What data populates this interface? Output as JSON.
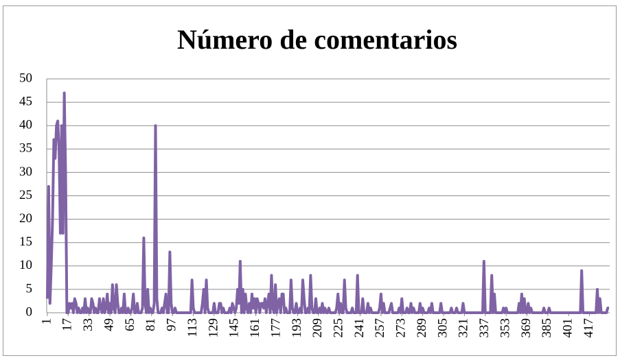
{
  "chart_data": {
    "type": "line",
    "title": "Número de comentarios",
    "color": "#7f63a5",
    "grid": true,
    "ylim": [
      0,
      50
    ],
    "yticks": [
      0,
      5,
      10,
      15,
      20,
      25,
      30,
      35,
      40,
      45,
      50
    ],
    "categories": [
      1,
      null,
      null,
      null,
      null,
      null,
      null,
      null,
      null,
      null,
      null,
      null,
      null,
      null,
      null,
      null,
      17,
      null,
      null,
      null,
      null,
      null,
      null,
      null,
      null,
      null,
      null,
      null,
      null,
      null,
      null,
      null,
      33,
      null,
      null,
      null,
      null,
      null,
      null,
      null,
      null,
      null,
      null,
      null,
      null,
      null,
      null,
      null,
      49,
      null,
      null,
      null,
      null,
      null,
      null,
      null,
      null,
      null,
      null,
      null,
      null,
      null,
      null,
      null,
      65,
      null,
      null,
      null,
      null,
      null,
      null,
      null,
      null,
      null,
      null,
      null,
      null,
      null,
      null,
      null,
      81,
      null,
      null,
      null,
      null,
      null,
      null,
      null,
      null,
      null,
      null,
      null,
      null,
      null,
      null,
      null,
      97,
      null,
      null,
      null,
      null,
      null,
      null,
      null,
      null,
      null,
      null,
      null,
      null,
      null,
      null,
      null,
      113,
      null,
      null,
      null,
      null,
      null,
      null,
      null,
      null,
      null,
      null,
      null,
      null,
      null,
      null,
      null,
      129,
      null,
      null,
      null,
      null,
      null,
      null,
      null,
      null,
      null,
      null,
      null,
      null,
      null,
      null,
      null,
      145,
      null,
      null,
      null,
      null,
      null,
      null,
      null,
      null,
      null,
      null,
      null,
      null,
      null,
      null,
      null,
      161,
      null,
      null,
      null,
      null,
      null,
      null,
      null,
      null,
      null,
      null,
      null,
      null,
      null,
      null,
      null,
      177,
      null,
      null,
      null,
      null,
      null,
      null,
      null,
      null,
      null,
      null,
      null,
      null,
      null,
      null,
      null,
      193,
      null,
      null,
      null,
      null,
      null,
      null,
      null,
      null,
      null,
      null,
      null,
      null,
      null,
      null,
      null,
      209,
      null,
      null,
      null,
      null,
      null,
      null,
      null,
      null,
      null,
      null,
      null,
      null,
      null,
      null,
      null,
      225,
      null,
      null,
      null,
      null,
      null,
      null,
      null,
      null,
      null,
      null,
      null,
      null,
      null,
      null,
      null,
      241,
      null,
      null,
      null,
      null,
      null,
      null,
      null,
      null,
      null,
      null,
      null,
      null,
      null,
      null,
      null,
      257,
      null,
      null,
      null,
      null,
      null,
      null,
      null,
      null,
      null,
      null,
      null,
      null,
      null,
      null,
      null,
      273,
      null,
      null,
      null,
      null,
      null,
      null,
      null,
      null,
      null,
      null,
      null,
      null,
      null,
      null,
      null,
      289,
      null,
      null,
      null,
      null,
      null,
      null,
      null,
      null,
      null,
      null,
      null,
      null,
      null,
      null,
      null,
      305,
      null,
      null,
      null,
      null,
      null,
      null,
      null,
      null,
      null,
      null,
      null,
      null,
      null,
      null,
      null,
      321,
      null,
      null,
      null,
      null,
      null,
      null,
      null,
      null,
      null,
      null,
      null,
      null,
      null,
      null,
      null,
      337,
      null,
      null,
      null,
      null,
      null,
      null,
      null,
      null,
      null,
      null,
      null,
      null,
      null,
      null,
      null,
      353,
      null,
      null,
      null,
      null,
      null,
      null,
      null,
      null,
      null,
      null,
      null,
      null,
      null,
      null,
      null,
      369,
      null,
      null,
      null,
      null,
      null,
      null,
      null,
      null,
      null,
      null,
      null,
      null,
      null,
      null,
      null,
      385,
      null,
      null,
      null,
      null,
      null,
      null,
      null,
      null,
      null,
      null,
      null,
      null,
      null,
      null,
      null,
      401,
      null,
      null,
      null,
      null,
      null,
      null,
      null,
      null,
      null,
      null,
      null,
      null,
      null,
      null,
      null,
      417,
      null,
      null,
      null,
      null,
      null,
      null,
      null,
      null,
      null,
      null,
      null,
      null,
      null,
      null,
      null
    ],
    "values": [
      3,
      27,
      2,
      10,
      20,
      37,
      33,
      40,
      41,
      35,
      17,
      40,
      17,
      47,
      30,
      0,
      0,
      2,
      1,
      2,
      0,
      3,
      2,
      0,
      1,
      0,
      0,
      1,
      0,
      3,
      0,
      1,
      0,
      0,
      3,
      2,
      0,
      1,
      0,
      0,
      3,
      1,
      0,
      3,
      0,
      1,
      4,
      0,
      2,
      0,
      6,
      1,
      0,
      6,
      2,
      0,
      0,
      1,
      0,
      4,
      0,
      0,
      1,
      0,
      0,
      1,
      4,
      0,
      0,
      2,
      0,
      0,
      0,
      1,
      16,
      2,
      0,
      5,
      0,
      1,
      0,
      0,
      2,
      40,
      3,
      0,
      0,
      0,
      1,
      0,
      2,
      4,
      0,
      0,
      13,
      2,
      0,
      0,
      1,
      0,
      0,
      0,
      0,
      0,
      0,
      0,
      0,
      0,
      0,
      0,
      0,
      7,
      1,
      0,
      0,
      0,
      0,
      0,
      0,
      2,
      5,
      0,
      7,
      1,
      0,
      0,
      0,
      0,
      2,
      0,
      0,
      0,
      2,
      2,
      0,
      1,
      0,
      0,
      0,
      0,
      1,
      0,
      2,
      1,
      0,
      1,
      5,
      2,
      11,
      0,
      5,
      0,
      4,
      1,
      0,
      2,
      0,
      4,
      1,
      3,
      0,
      3,
      2,
      0,
      2,
      2,
      1,
      3,
      0,
      2,
      4,
      0,
      8,
      1,
      0,
      6,
      0,
      2,
      3,
      0,
      4,
      4,
      0,
      1,
      0,
      0,
      0,
      7,
      1,
      0,
      0,
      2,
      0,
      0,
      1,
      0,
      7,
      3,
      0,
      0,
      1,
      0,
      8,
      1,
      0,
      0,
      3,
      0,
      0,
      1,
      0,
      2,
      0,
      1,
      0,
      0,
      1,
      0,
      0,
      0,
      0,
      0,
      1,
      4,
      0,
      2,
      0,
      0,
      7,
      1,
      0,
      0,
      0,
      0,
      1,
      0,
      0,
      0,
      8,
      0,
      0,
      0,
      3,
      0,
      0,
      0,
      2,
      0,
      1,
      0,
      0,
      0,
      0,
      0,
      0,
      1,
      4,
      0,
      2,
      0,
      0,
      0,
      0,
      1,
      2,
      0,
      0,
      0,
      0,
      0,
      1,
      0,
      3,
      0,
      0,
      0,
      1,
      0,
      0,
      2,
      0,
      1,
      0,
      0,
      0,
      0,
      2,
      0,
      1,
      0,
      0,
      0,
      0,
      1,
      0,
      2,
      0,
      0,
      0,
      0,
      0,
      0,
      2,
      0,
      0,
      0,
      0,
      0,
      0,
      0,
      1,
      0,
      0,
      0,
      1,
      0,
      0,
      0,
      0,
      2,
      0,
      0,
      0,
      0,
      0,
      0,
      0,
      0,
      0,
      0,
      0,
      0,
      0,
      0,
      0,
      11,
      0,
      0,
      0,
      0,
      0,
      8,
      0,
      4,
      0,
      0,
      0,
      0,
      0,
      0,
      1,
      0,
      1,
      0,
      0,
      0,
      0,
      0,
      0,
      0,
      0,
      0,
      2,
      0,
      4,
      0,
      3,
      0,
      0,
      2,
      0,
      1,
      0,
      0,
      0,
      0,
      0,
      0,
      0,
      0,
      0,
      1,
      0,
      0,
      0,
      1,
      0,
      0,
      0,
      0,
      0,
      0,
      0,
      0,
      0,
      0,
      0,
      0,
      0,
      0,
      0,
      0,
      0,
      0,
      0,
      0,
      0,
      0,
      0,
      0,
      9,
      0,
      0,
      0,
      0,
      0,
      0,
      0,
      0,
      0,
      0,
      0,
      5,
      0,
      3,
      0,
      0,
      0,
      0,
      0,
      1,
      1
    ]
  }
}
